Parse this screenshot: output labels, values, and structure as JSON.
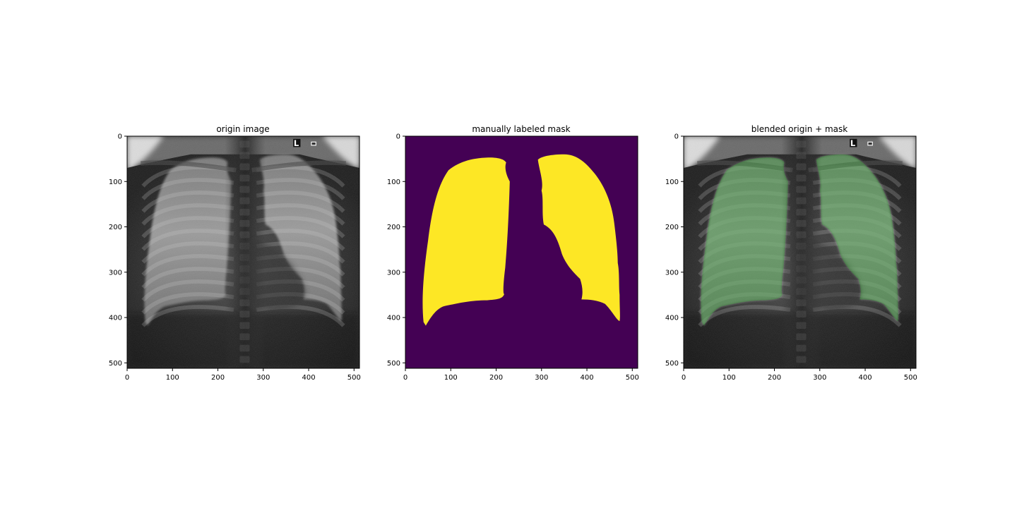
{
  "panels": [
    {
      "id": "origin",
      "title": "origin image",
      "kind": "xray",
      "show_marker": true,
      "marker_text": "L"
    },
    {
      "id": "mask",
      "title": "manually labeled mask",
      "kind": "mask",
      "show_marker": false,
      "marker_text": ""
    },
    {
      "id": "blended",
      "title": "blended origin + mask",
      "kind": "blended",
      "show_marker": true,
      "marker_text": "L"
    }
  ],
  "axes": {
    "x_ticks": [
      "0",
      "100",
      "200",
      "300",
      "400",
      "500"
    ],
    "y_ticks": [
      "0",
      "100",
      "200",
      "300",
      "400",
      "500"
    ],
    "x_tick_values": [
      0,
      100,
      200,
      300,
      400,
      500
    ],
    "y_tick_values": [
      0,
      100,
      200,
      300,
      400,
      500
    ],
    "extent": 512
  },
  "colors": {
    "mask_background": "#440154",
    "mask_foreground": "#fde725",
    "overlay": "#3ca03c"
  }
}
